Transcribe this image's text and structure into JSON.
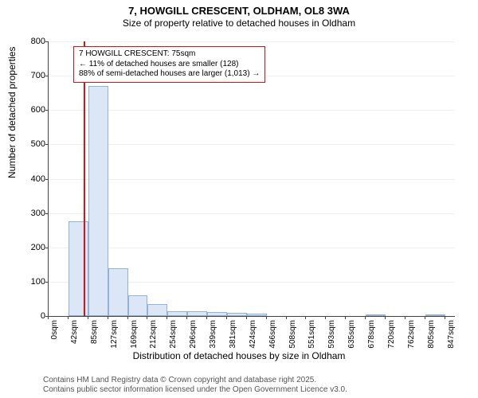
{
  "title": "7, HOWGILL CRESCENT, OLDHAM, OL8 3WA",
  "subtitle": "Size of property relative to detached houses in Oldham",
  "ylabel": "Number of detached properties",
  "xlabel": "Distribution of detached houses by size in Oldham",
  "chart": {
    "type": "histogram",
    "background_color": "#ffffff",
    "grid_color": "#f0f0f2",
    "axis_color": "#444444",
    "bar_fill": "#dbe7f7",
    "bar_border": "#95b2d6",
    "marker_line_color": "#dd1111",
    "ylim": [
      0,
      800
    ],
    "ytick_step": 100,
    "ytick_labels": [
      "0",
      "100",
      "200",
      "300",
      "400",
      "500",
      "600",
      "700",
      "800"
    ],
    "x_min": 0,
    "x_max": 868,
    "x_tick_step": 42.35,
    "x_tick_labels": [
      "0sqm",
      "42sqm",
      "85sqm",
      "127sqm",
      "169sqm",
      "212sqm",
      "254sqm",
      "296sqm",
      "339sqm",
      "381sqm",
      "424sqm",
      "466sqm",
      "508sqm",
      "551sqm",
      "593sqm",
      "635sqm",
      "678sqm",
      "720sqm",
      "762sqm",
      "805sqm",
      "847sqm"
    ],
    "bar_bin_width": 42.35,
    "bars": [
      0,
      275,
      670,
      140,
      60,
      35,
      15,
      15,
      12,
      10,
      8,
      0,
      0,
      0,
      0,
      0,
      2,
      0,
      0,
      2
    ],
    "marker_x": 75
  },
  "annotation": {
    "lines": [
      "7 HOWGILL CRESCENT: 75sqm",
      "← 11% of detached houses are smaller (128)",
      "88% of semi-detached houses are larger (1,013) →"
    ],
    "border_color": "#dd1111",
    "fontsize": 10
  },
  "footer": {
    "line1": "Contains HM Land Registry data © Crown copyright and database right 2025.",
    "line2": "Contains public sector information licensed under the Open Government Licence v3.0."
  }
}
